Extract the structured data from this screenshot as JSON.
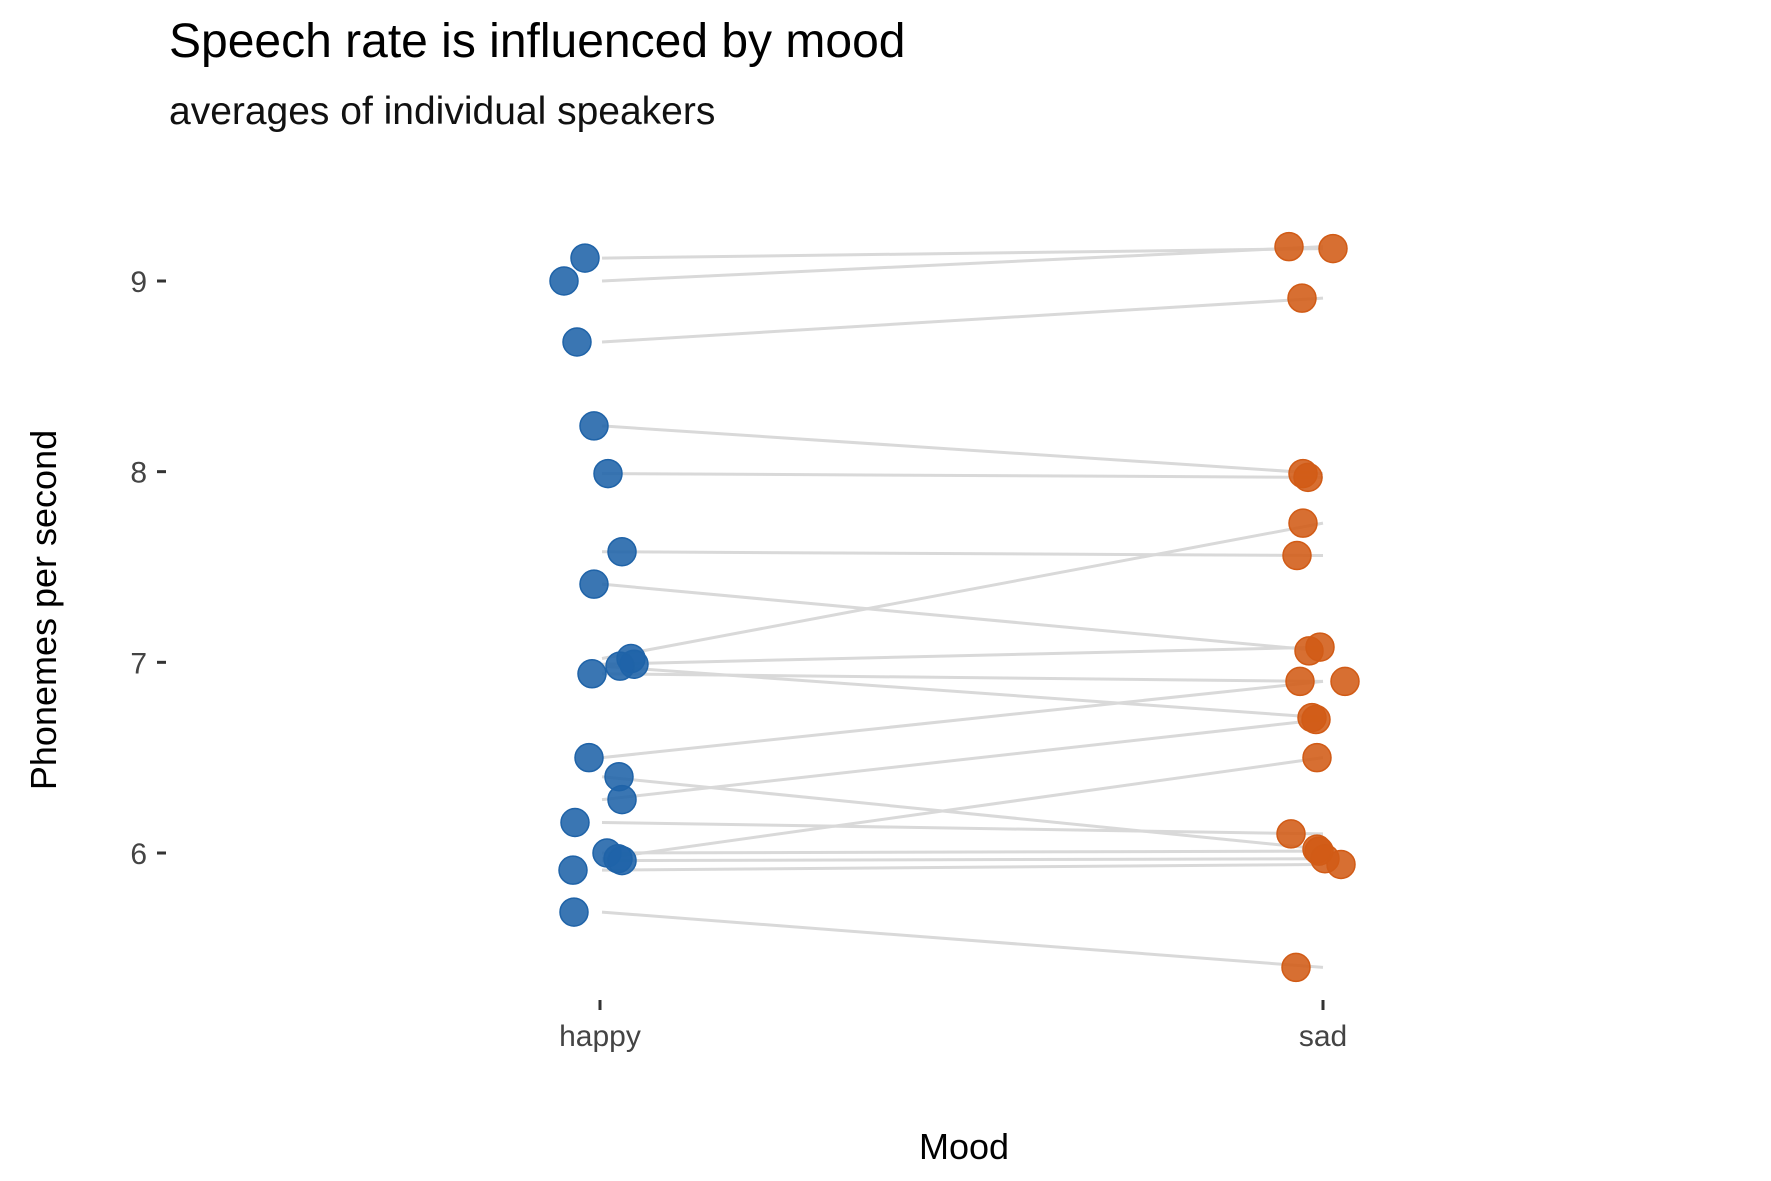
{
  "chart_data": {
    "type": "scatter",
    "title": "Speech rate is influenced by mood",
    "subtitle": "averages of individual speakers",
    "xlabel": "Mood",
    "ylabel": "Phonemes per second",
    "categories": [
      "happy",
      "sad"
    ],
    "y_ticks": [
      6,
      7,
      8,
      9
    ],
    "ylim": [
      5.2,
      9.5
    ],
    "grid": false,
    "colors": {
      "happy": "#1F63A8",
      "sad": "#D15B16",
      "connector": "#D9D9D9"
    },
    "speakers": [
      {
        "happy": 9.12,
        "sad": 9.17
      },
      {
        "happy": 9.0,
        "sad": 9.18
      },
      {
        "happy": 8.68,
        "sad": 8.91
      },
      {
        "happy": 8.24,
        "sad": 7.99
      },
      {
        "happy": 7.99,
        "sad": 7.97
      },
      {
        "happy": 7.58,
        "sad": 7.56
      },
      {
        "happy": 7.41,
        "sad": 7.06
      },
      {
        "happy": 7.02,
        "sad": 7.73
      },
      {
        "happy": 6.99,
        "sad": 7.08
      },
      {
        "happy": 6.98,
        "sad": 6.71
      },
      {
        "happy": 6.94,
        "sad": 6.9
      },
      {
        "happy": 6.5,
        "sad": 6.9
      },
      {
        "happy": 6.4,
        "sad": 6.02
      },
      {
        "happy": 6.28,
        "sad": 6.7
      },
      {
        "happy": 6.16,
        "sad": 6.1
      },
      {
        "happy": 6.0,
        "sad": 6.01
      },
      {
        "happy": 5.97,
        "sad": 6.5
      },
      {
        "happy": 5.96,
        "sad": 5.97
      },
      {
        "happy": 5.91,
        "sad": 5.94
      },
      {
        "happy": 5.69,
        "sad": 5.4
      }
    ]
  }
}
